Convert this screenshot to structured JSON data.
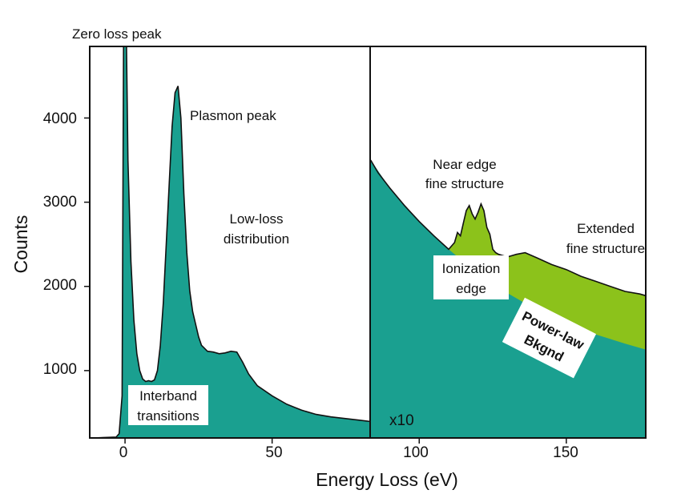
{
  "chart_data": {
    "type": "area",
    "xlabel": "Energy Loss (eV)",
    "ylabel": "Counts",
    "xlim": [
      -12,
      177
    ],
    "ylim": [
      200,
      4850
    ],
    "x_ticks": [
      0,
      50,
      100,
      150
    ],
    "y_ticks": [
      1000,
      2000,
      3000,
      4000
    ],
    "grid": false,
    "scale_label": "x10",
    "colors": {
      "spectrum": "#1aa090",
      "edge": "#8cc21b",
      "outline": "#111111"
    },
    "low_loss": {
      "x": [
        -11,
        -3,
        -2,
        -1,
        -0.5,
        0,
        0.5,
        1,
        2,
        3,
        4,
        5,
        6,
        7,
        8,
        9,
        10,
        11,
        12,
        13,
        14,
        15,
        16,
        17,
        18,
        19,
        20,
        21,
        22,
        23,
        24,
        25,
        26,
        28,
        30,
        32,
        34,
        36,
        38,
        40,
        42,
        45,
        50,
        55,
        60,
        65,
        70,
        75,
        80,
        83.5
      ],
      "y": [
        200,
        210,
        250,
        700,
        4850,
        4850,
        4850,
        3500,
        2300,
        1600,
        1200,
        1000,
        900,
        870,
        880,
        870,
        890,
        1000,
        1300,
        1800,
        2500,
        3200,
        3900,
        4300,
        4380,
        4000,
        3100,
        2400,
        1950,
        1700,
        1550,
        1400,
        1300,
        1230,
        1220,
        1200,
        1210,
        1230,
        1220,
        1100,
        960,
        820,
        700,
        600,
        530,
        480,
        450,
        430,
        410,
        395
      ]
    },
    "core_loss": {
      "x": [
        83.5,
        86,
        90,
        95,
        100,
        105,
        110,
        112,
        113,
        114,
        115,
        116,
        117,
        118,
        119,
        120,
        121,
        122,
        123,
        124,
        125,
        126,
        127,
        128,
        130,
        133,
        136,
        140,
        145,
        150,
        155,
        160,
        165,
        170,
        175,
        177
      ],
      "y": [
        3500,
        3350,
        3170,
        2960,
        2770,
        2600,
        2440,
        2520,
        2640,
        2600,
        2750,
        2900,
        2960,
        2860,
        2800,
        2880,
        2980,
        2900,
        2700,
        2620,
        2440,
        2400,
        2380,
        2370,
        2350,
        2380,
        2400,
        2340,
        2260,
        2200,
        2120,
        2060,
        2000,
        1940,
        1910,
        1890
      ]
    },
    "power_law_background": {
      "x": [
        83.5,
        90,
        100,
        110,
        120,
        130,
        140,
        150,
        160,
        170,
        177
      ],
      "y": [
        3500,
        3170,
        2770,
        2440,
        2150,
        1920,
        1720,
        1560,
        1430,
        1320,
        1250
      ]
    },
    "annotations": {
      "zero_loss": "Zero loss peak",
      "plasmon": "Plasmon peak",
      "low_loss_1": "Low-loss",
      "low_loss_2": "distribution",
      "interband_1": "Interband",
      "interband_2": "transitions",
      "near_edge_1": "Near edge",
      "near_edge_2": "fine structure",
      "extended_1": "Extended",
      "extended_2": "fine structure",
      "ionization_1": "Ionization",
      "ionization_2": "edge",
      "background_1": "Power-law",
      "background_2": "Bkgnd"
    }
  }
}
